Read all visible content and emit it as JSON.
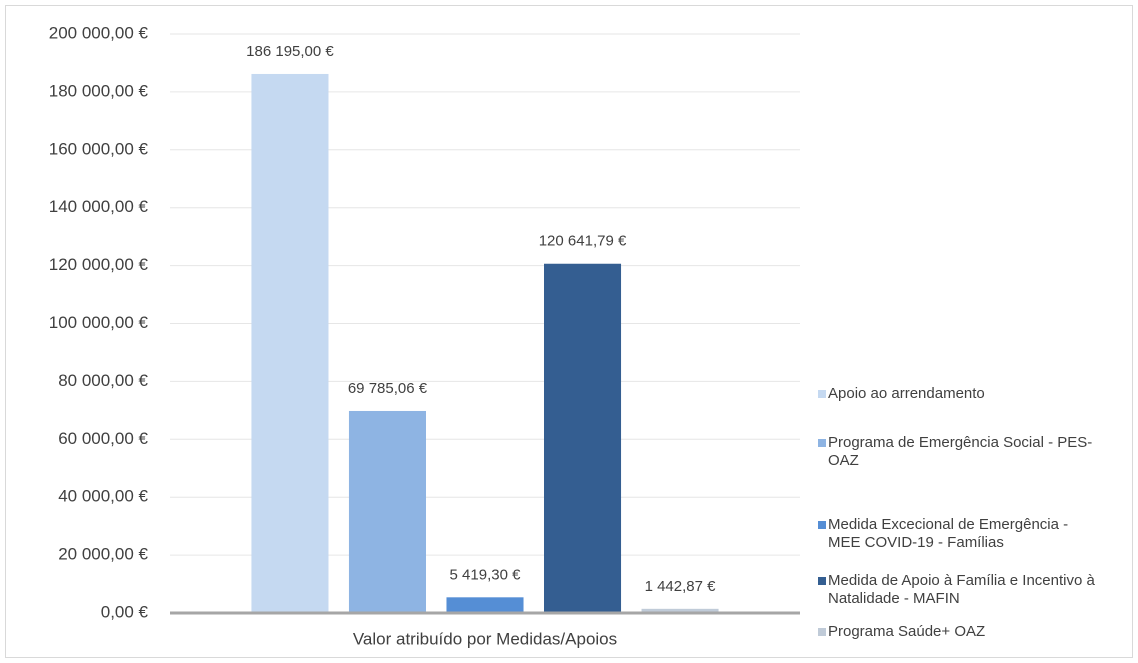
{
  "chart_data": {
    "type": "bar",
    "categories": [
      "Valor atribuído por Medidas/Apoios"
    ],
    "series": [
      {
        "name": "Apoio ao arrendamento",
        "color": "#c5d9f1",
        "values": [
          186195
        ],
        "value_labels": [
          "186 195,00 €"
        ]
      },
      {
        "name": "Programa de Emergência Social - PES-OAZ",
        "color": "#8eb4e3",
        "values": [
          69785.06
        ],
        "value_labels": [
          "69 785,06 €"
        ]
      },
      {
        "name": "Medida Excecional de Emergência - MEE COVID-19 - Famílias",
        "color": "#558ed5",
        "values": [
          5419.3
        ],
        "value_labels": [
          "5 419,30 €"
        ]
      },
      {
        "name": "Medida de Apoio à Família e Incentivo à Natalidade - MAFIN",
        "color": "#345e91",
        "values": [
          120641.79
        ],
        "value_labels": [
          "120 641,79 €"
        ]
      },
      {
        "name": "Programa Saúde+ OAZ",
        "color": "#c0cbd8",
        "values": [
          1442.87
        ],
        "value_labels": [
          "1 442,87 €"
        ]
      }
    ],
    "ylim": [
      0,
      200000
    ],
    "yticks": [
      {
        "value": 0,
        "label": "0,00 €"
      },
      {
        "value": 20000,
        "label": "20 000,00 €"
      },
      {
        "value": 40000,
        "label": "40 000,00 €"
      },
      {
        "value": 60000,
        "label": "60 000,00 €"
      },
      {
        "value": 80000,
        "label": "80 000,00 €"
      },
      {
        "value": 100000,
        "label": "100 000,00 €"
      },
      {
        "value": 120000,
        "label": "120 000,00 €"
      },
      {
        "value": 140000,
        "label": "140 000,00 €"
      },
      {
        "value": 160000,
        "label": "160 000,00 €"
      },
      {
        "value": 180000,
        "label": "180 000,00 €"
      },
      {
        "value": 200000,
        "label": "200 000,00 €"
      }
    ],
    "grid": true,
    "legend": "right"
  }
}
